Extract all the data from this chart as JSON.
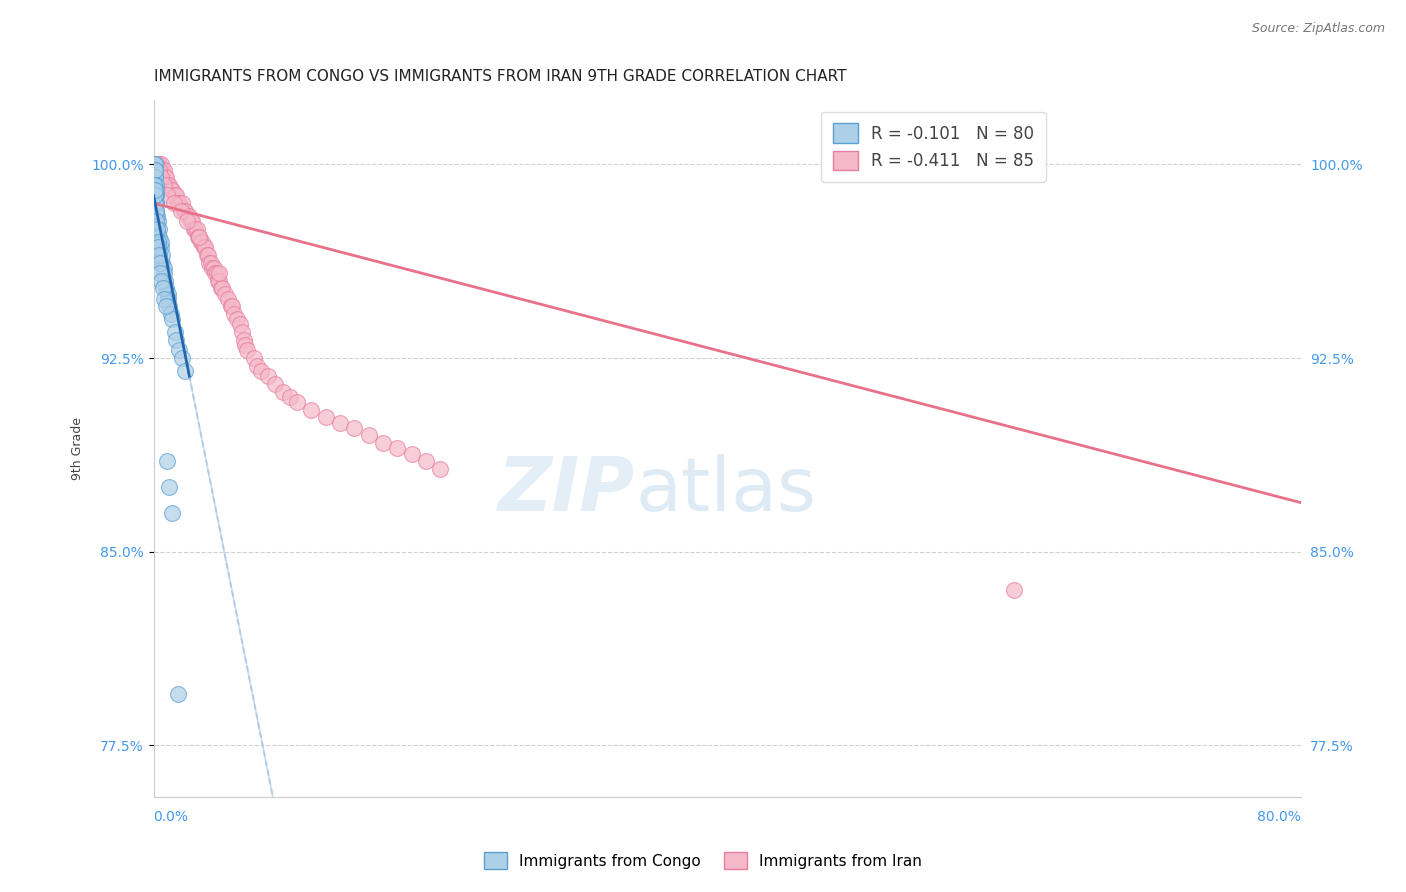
{
  "title": "IMMIGRANTS FROM CONGO VS IMMIGRANTS FROM IRAN 9TH GRADE CORRELATION CHART",
  "source": "Source: ZipAtlas.com",
  "ylabel_label": "9th Grade",
  "yticks": [
    100.0,
    92.5,
    85.0,
    77.5
  ],
  "ytick_labels": [
    "100.0%",
    "92.5%",
    "85.0%",
    "77.5%"
  ],
  "xlim": [
    0.0,
    80.0
  ],
  "ylim": [
    75.5,
    102.5
  ],
  "congo_color": "#aecfe8",
  "iran_color": "#f4b8c8",
  "congo_edge": "#5a9fd4",
  "iran_edge": "#e87da0",
  "regression_congo_color": "#2166ac",
  "regression_iran_color": "#e8718a",
  "dashed_line_color": "#aac8e8",
  "legend_r_congo": "R = -0.101",
  "legend_n_congo": "N = 80",
  "legend_r_iran": "R = -0.411",
  "legend_n_iran": "N = 85",
  "watermark_zip": "ZIP",
  "watermark_atlas": "atlas",
  "background_color": "#ffffff",
  "grid_color": "#cccccc",
  "title_fontsize": 11,
  "axis_label_fontsize": 9,
  "tick_fontsize": 10,
  "legend_fontsize": 12,
  "congo_R": -0.101,
  "iran_R": -0.411,
  "congo_intercept": 98.8,
  "congo_slope": -2.8,
  "iran_intercept": 98.5,
  "iran_slope": -0.145,
  "dashed_intercept": 98.8,
  "dashed_slope": -2.8,
  "congo_scatter_x": [
    0.05,
    0.05,
    0.05,
    0.07,
    0.07,
    0.07,
    0.08,
    0.08,
    0.1,
    0.1,
    0.1,
    0.1,
    0.12,
    0.12,
    0.12,
    0.12,
    0.15,
    0.15,
    0.15,
    0.15,
    0.15,
    0.15,
    0.2,
    0.2,
    0.2,
    0.2,
    0.2,
    0.2,
    0.25,
    0.25,
    0.25,
    0.3,
    0.3,
    0.3,
    0.35,
    0.35,
    0.4,
    0.4,
    0.4,
    0.5,
    0.5,
    0.5,
    0.6,
    0.6,
    0.7,
    0.7,
    0.8,
    0.9,
    1.0,
    1.0,
    1.1,
    1.2,
    1.3,
    1.5,
    1.6,
    1.8,
    2.0,
    2.2,
    0.05,
    0.06,
    0.08,
    0.09,
    0.11,
    0.13,
    0.16,
    0.18,
    0.22,
    0.28,
    0.32,
    0.38,
    0.42,
    0.48,
    0.55,
    0.65,
    0.75,
    0.85,
    0.95,
    1.1,
    1.3,
    1.7
  ],
  "congo_scatter_y": [
    100.0,
    100.0,
    99.8,
    100.0,
    99.5,
    99.8,
    99.8,
    100.0,
    99.5,
    99.8,
    99.2,
    99.0,
    99.5,
    99.2,
    98.8,
    99.8,
    98.5,
    98.8,
    99.2,
    98.5,
    99.0,
    98.2,
    98.8,
    98.5,
    98.0,
    97.8,
    98.2,
    97.5,
    98.0,
    97.5,
    97.2,
    97.8,
    97.2,
    97.0,
    97.5,
    97.0,
    96.8,
    96.5,
    97.2,
    96.8,
    96.2,
    97.0,
    96.2,
    96.5,
    96.0,
    95.8,
    95.5,
    95.2,
    95.0,
    94.8,
    94.5,
    94.2,
    94.0,
    93.5,
    93.2,
    92.8,
    92.5,
    92.0,
    99.0,
    99.2,
    98.8,
    98.5,
    98.8,
    99.0,
    98.2,
    97.8,
    97.5,
    97.0,
    96.8,
    96.5,
    96.2,
    95.8,
    95.5,
    95.2,
    94.8,
    94.5,
    88.5,
    87.5,
    86.5,
    79.5
  ],
  "iran_scatter_x": [
    0.1,
    0.2,
    0.3,
    0.4,
    0.5,
    0.6,
    0.7,
    0.8,
    0.9,
    1.0,
    1.1,
    1.2,
    1.3,
    1.5,
    1.6,
    1.7,
    1.8,
    2.0,
    2.1,
    2.2,
    2.4,
    2.5,
    2.6,
    2.7,
    2.8,
    2.9,
    3.0,
    3.1,
    3.2,
    3.3,
    3.4,
    3.5,
    3.6,
    3.7,
    3.8,
    3.9,
    4.0,
    4.1,
    4.2,
    4.3,
    4.4,
    4.5,
    4.6,
    4.7,
    4.8,
    5.0,
    5.2,
    5.4,
    5.5,
    5.6,
    5.8,
    6.0,
    6.2,
    6.3,
    6.4,
    6.5,
    7.0,
    7.2,
    7.5,
    8.0,
    8.5,
    9.0,
    9.5,
    10.0,
    11.0,
    12.0,
    13.0,
    14.0,
    15.0,
    16.0,
    17.0,
    18.0,
    19.0,
    20.0,
    0.15,
    0.35,
    0.55,
    0.75,
    0.95,
    1.4,
    1.9,
    2.3,
    3.15,
    4.55,
    60.0
  ],
  "iran_scatter_y": [
    100.0,
    100.0,
    100.0,
    100.0,
    100.0,
    99.8,
    99.8,
    99.5,
    99.5,
    99.2,
    99.2,
    99.0,
    99.0,
    98.8,
    98.8,
    98.5,
    98.5,
    98.5,
    98.2,
    98.2,
    98.0,
    98.0,
    97.8,
    97.8,
    97.5,
    97.5,
    97.5,
    97.2,
    97.2,
    97.0,
    97.0,
    96.8,
    96.8,
    96.5,
    96.5,
    96.2,
    96.2,
    96.0,
    96.0,
    95.8,
    95.8,
    95.5,
    95.5,
    95.2,
    95.2,
    95.0,
    94.8,
    94.5,
    94.5,
    94.2,
    94.0,
    93.8,
    93.5,
    93.2,
    93.0,
    92.8,
    92.5,
    92.2,
    92.0,
    91.8,
    91.5,
    91.2,
    91.0,
    90.8,
    90.5,
    90.2,
    90.0,
    89.8,
    89.5,
    89.2,
    89.0,
    88.8,
    88.5,
    88.2,
    100.0,
    99.8,
    99.5,
    99.2,
    98.8,
    98.5,
    98.2,
    97.8,
    97.2,
    95.8,
    83.5
  ]
}
